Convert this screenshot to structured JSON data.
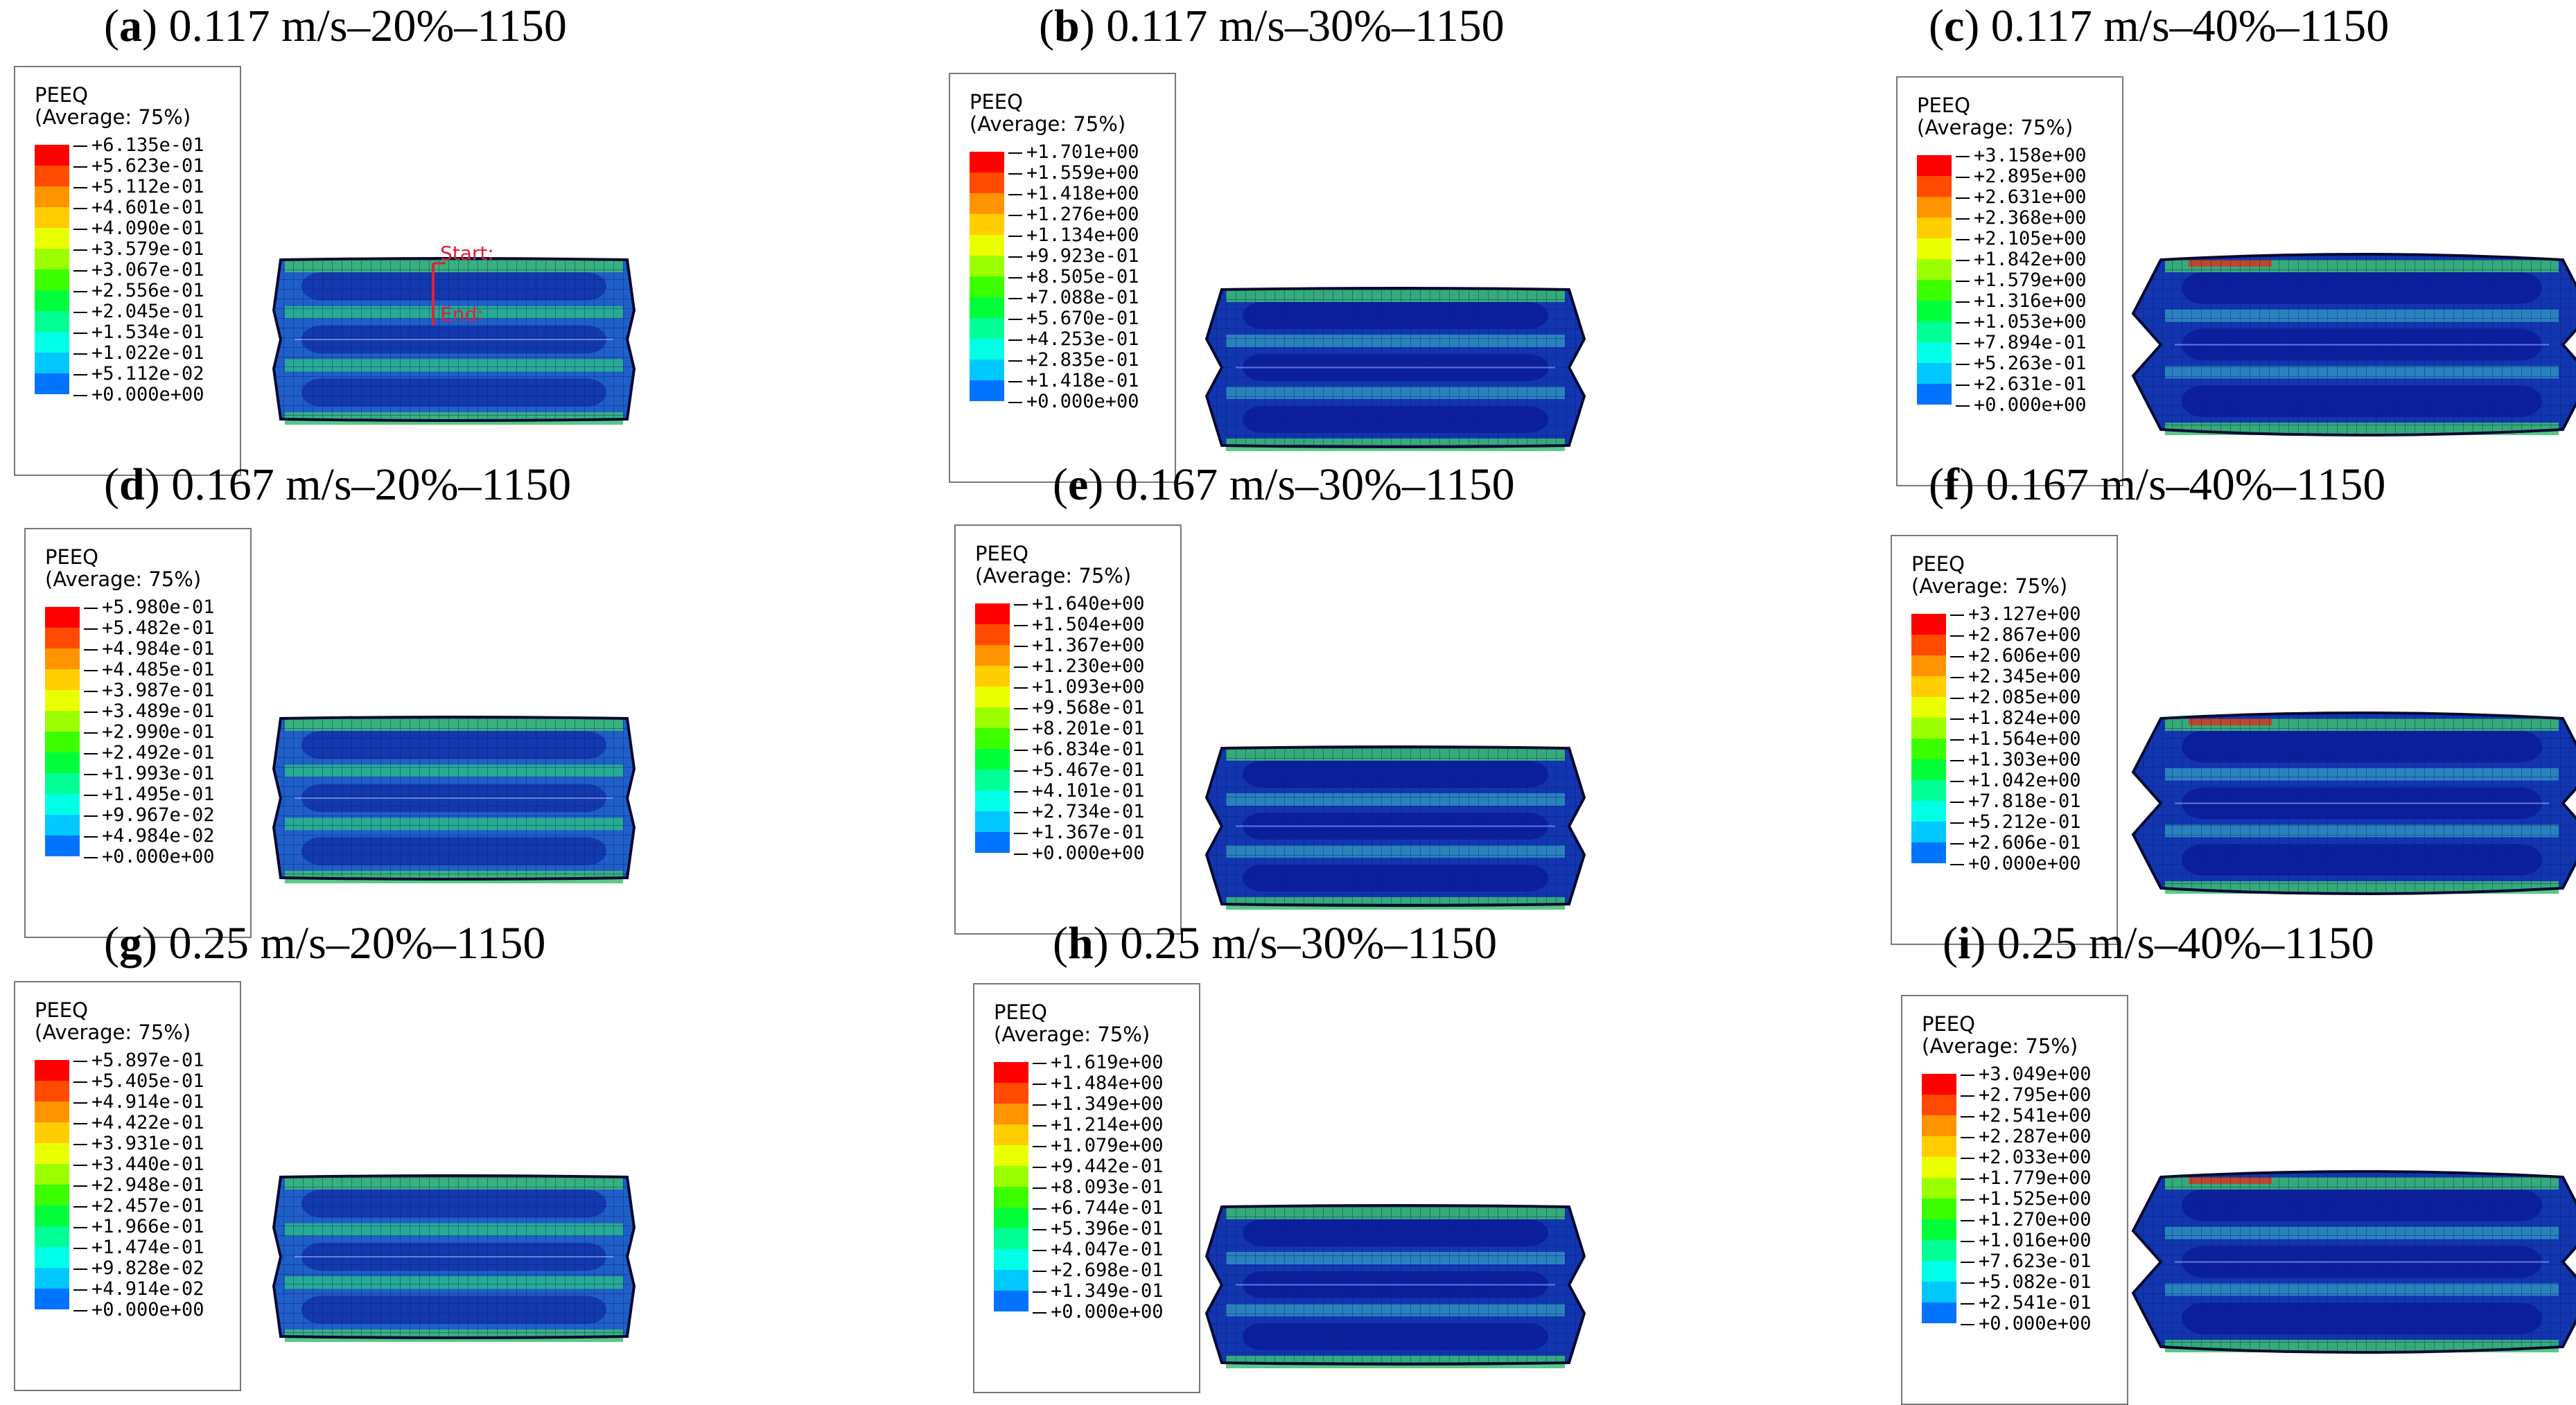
{
  "result_name": "PEEQ",
  "averaging": "(Average: 75%)",
  "colormap": [
    "#ff0000",
    "#ff4a00",
    "#ff9400",
    "#ffcd00",
    "#eaff00",
    "#9cff00",
    "#3cff00",
    "#00ff3a",
    "#00ff94",
    "#00ffe6",
    "#00c8ff",
    "#0073ff",
    "#0026ff"
  ],
  "annotations": {
    "start": "Start:",
    "end": "End:"
  },
  "panels": [
    {
      "letter": "a",
      "title": " 0.117 m/s–20%–1150",
      "deform": 1,
      "ticks": [
        "+6.135e-01",
        "+5.623e-01",
        "+5.112e-01",
        "+4.601e-01",
        "+4.090e-01",
        "+3.579e-01",
        "+3.067e-01",
        "+2.556e-01",
        "+2.045e-01",
        "+1.534e-01",
        "+1.022e-01",
        "+5.112e-02",
        "+0.000e+00"
      ]
    },
    {
      "letter": "b",
      "title": " 0.117 m/s–30%–1150",
      "deform": 2,
      "ticks": [
        "+1.701e+00",
        "+1.559e+00",
        "+1.418e+00",
        "+1.276e+00",
        "+1.134e+00",
        "+9.923e-01",
        "+8.505e-01",
        "+7.088e-01",
        "+5.670e-01",
        "+4.253e-01",
        "+2.835e-01",
        "+1.418e-01",
        "+0.000e+00"
      ]
    },
    {
      "letter": "c",
      "title": " 0.117 m/s–40%–1150",
      "deform": 3,
      "ticks": [
        "+3.158e+00",
        "+2.895e+00",
        "+2.631e+00",
        "+2.368e+00",
        "+2.105e+00",
        "+1.842e+00",
        "+1.579e+00",
        "+1.316e+00",
        "+1.053e+00",
        "+7.894e-01",
        "+5.263e-01",
        "+2.631e-01",
        "+0.000e+00"
      ]
    },
    {
      "letter": "d",
      "title": " 0.167 m/s–20%–1150",
      "deform": 1,
      "ticks": [
        "+5.980e-01",
        "+5.482e-01",
        "+4.984e-01",
        "+4.485e-01",
        "+3.987e-01",
        "+3.489e-01",
        "+2.990e-01",
        "+2.492e-01",
        "+1.993e-01",
        "+1.495e-01",
        "+9.967e-02",
        "+4.984e-02",
        "+0.000e+00"
      ]
    },
    {
      "letter": "e",
      "title": " 0.167 m/s–30%–1150",
      "deform": 2,
      "ticks": [
        "+1.640e+00",
        "+1.504e+00",
        "+1.367e+00",
        "+1.230e+00",
        "+1.093e+00",
        "+9.568e-01",
        "+8.201e-01",
        "+6.834e-01",
        "+5.467e-01",
        "+4.101e-01",
        "+2.734e-01",
        "+1.367e-01",
        "+0.000e+00"
      ]
    },
    {
      "letter": "f",
      "title": " 0.167 m/s–40%–1150",
      "deform": 3,
      "ticks": [
        "+3.127e+00",
        "+2.867e+00",
        "+2.606e+00",
        "+2.345e+00",
        "+2.085e+00",
        "+1.824e+00",
        "+1.564e+00",
        "+1.303e+00",
        "+1.042e+00",
        "+7.818e-01",
        "+5.212e-01",
        "+2.606e-01",
        "+0.000e+00"
      ]
    },
    {
      "letter": "g",
      "title": " 0.25 m/s–20%–1150",
      "deform": 1,
      "ticks": [
        "+5.897e-01",
        "+5.405e-01",
        "+4.914e-01",
        "+4.422e-01",
        "+3.931e-01",
        "+3.440e-01",
        "+2.948e-01",
        "+2.457e-01",
        "+1.966e-01",
        "+1.474e-01",
        "+9.828e-02",
        "+4.914e-02",
        "+0.000e+00"
      ]
    },
    {
      "letter": "h",
      "title": " 0.25 m/s–30%–1150",
      "deform": 2,
      "ticks": [
        "+1.619e+00",
        "+1.484e+00",
        "+1.349e+00",
        "+1.214e+00",
        "+1.079e+00",
        "+9.442e-01",
        "+8.093e-01",
        "+6.744e-01",
        "+5.396e-01",
        "+4.047e-01",
        "+2.698e-01",
        "+1.349e-01",
        "+0.000e+00"
      ]
    },
    {
      "letter": "i",
      "title": " 0.25 m/s–40%–1150",
      "deform": 3,
      "ticks": [
        "+3.049e+00",
        "+2.795e+00",
        "+2.541e+00",
        "+2.287e+00",
        "+2.033e+00",
        "+1.779e+00",
        "+1.525e+00",
        "+1.270e+00",
        "+1.016e+00",
        "+7.623e-01",
        "+5.082e-01",
        "+2.541e-01",
        "+0.000e+00"
      ]
    }
  ]
}
